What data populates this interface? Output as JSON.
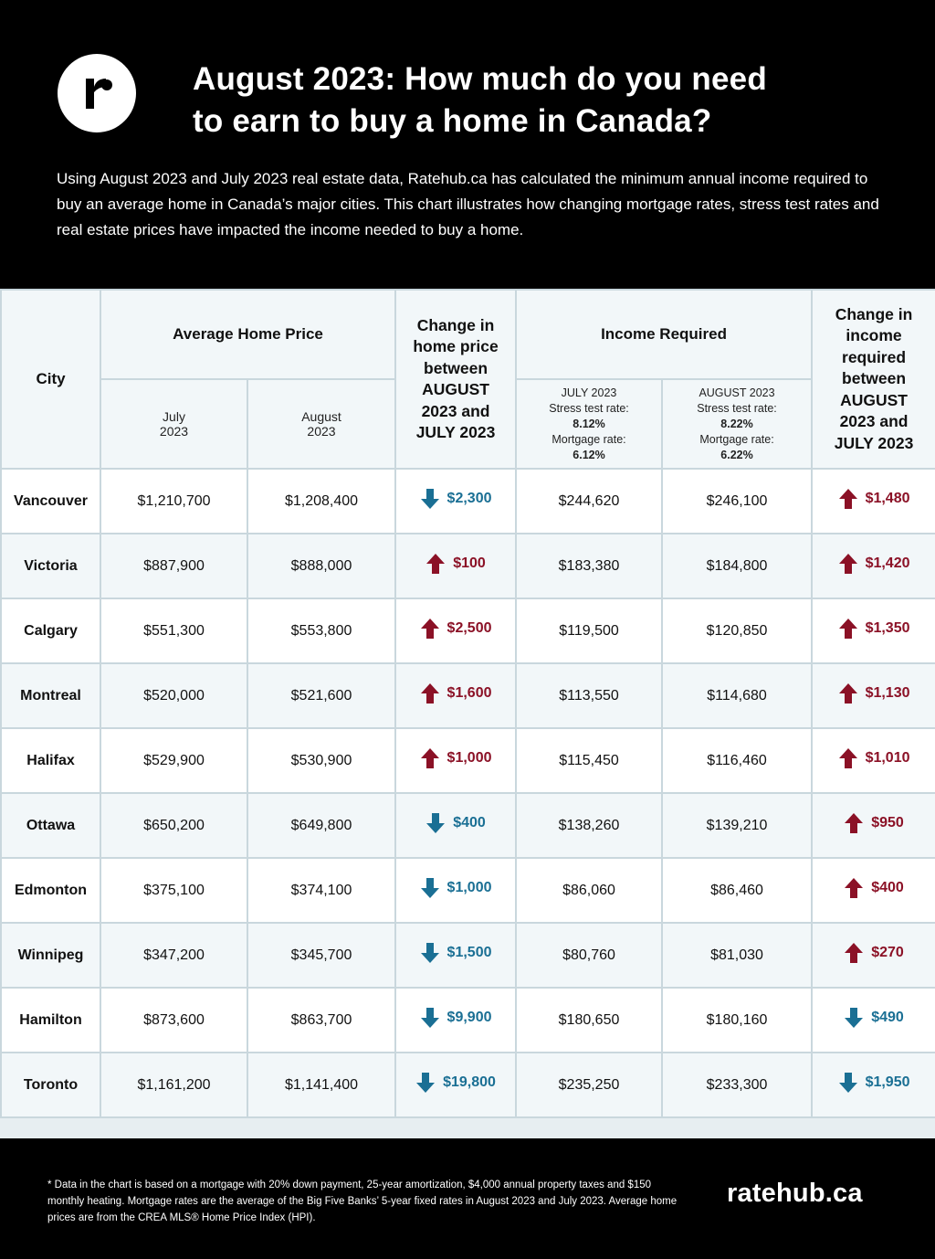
{
  "header": {
    "logo_letter": "r",
    "title_line1": "August 2023: How much do you need",
    "title_line2": "to earn to buy a home in Canada?",
    "intro": "Using August 2023 and July 2023 real estate data, Ratehub.ca has calculated the minimum annual income required to buy an average home in Canada’s major cities. This chart illustrates how changing mortgage rates, stress test rates and real estate prices have impacted the income needed to buy a home."
  },
  "table_headers": {
    "city": "City",
    "avg_price": "Average Home Price",
    "july_line1": "July",
    "july_line2": "2023",
    "aug_line1": "August",
    "aug_line2": "2023",
    "change_price_lines": [
      "Change in",
      "home price",
      "between",
      "AUGUST",
      "2023 and",
      "JULY 2023"
    ],
    "income_required": "Income Required",
    "ir_july": {
      "period": "JULY 2023",
      "stress_label": "Stress test rate:",
      "stress_value": "8.12%",
      "mortgage_label": "Mortgage rate:",
      "mortgage_value": "6.12%"
    },
    "ir_aug": {
      "period": "AUGUST 2023",
      "stress_label": "Stress test rate:",
      "stress_value": "8.22%",
      "mortgage_label": "Mortgage rate:",
      "mortgage_value": "6.22%"
    },
    "change_income_lines": [
      "Change in",
      "income",
      "required",
      "between",
      "AUGUST",
      "2023 and",
      "JULY 2023"
    ]
  },
  "colors": {
    "increase": "#8b1126",
    "decrease": "#1a6f94",
    "header_bg": "#000000",
    "grid": "#c9d7dd"
  },
  "chart_data": {
    "type": "table",
    "columns": [
      "City",
      "Average Home Price July 2023",
      "Average Home Price August 2023",
      "Change in home price between AUGUST 2023 and JULY 2023",
      "Income Required JULY 2023",
      "Income Required AUGUST 2023",
      "Change in income required between AUGUST 2023 and JULY 2023"
    ],
    "rows": [
      {
        "city": "Vancouver",
        "price_jul": "$1,210,700",
        "price_aug": "$1,208,400",
        "price_change": "$2,300",
        "price_dir": "down",
        "income_jul": "$244,620",
        "income_aug": "$246,100",
        "income_change": "$1,480",
        "income_dir": "up"
      },
      {
        "city": "Victoria",
        "price_jul": "$887,900",
        "price_aug": "$888,000",
        "price_change": "$100",
        "price_dir": "up",
        "income_jul": "$183,380",
        "income_aug": "$184,800",
        "income_change": "$1,420",
        "income_dir": "up"
      },
      {
        "city": "Calgary",
        "price_jul": "$551,300",
        "price_aug": "$553,800",
        "price_change": "$2,500",
        "price_dir": "up",
        "income_jul": "$119,500",
        "income_aug": "$120,850",
        "income_change": "$1,350",
        "income_dir": "up"
      },
      {
        "city": "Montreal",
        "price_jul": "$520,000",
        "price_aug": "$521,600",
        "price_change": "$1,600",
        "price_dir": "up",
        "income_jul": "$113,550",
        "income_aug": "$114,680",
        "income_change": "$1,130",
        "income_dir": "up"
      },
      {
        "city": "Halifax",
        "price_jul": "$529,900",
        "price_aug": "$530,900",
        "price_change": "$1,000",
        "price_dir": "up",
        "income_jul": "$115,450",
        "income_aug": "$116,460",
        "income_change": "$1,010",
        "income_dir": "up"
      },
      {
        "city": "Ottawa",
        "price_jul": "$650,200",
        "price_aug": "$649,800",
        "price_change": "$400",
        "price_dir": "down",
        "income_jul": "$138,260",
        "income_aug": "$139,210",
        "income_change": "$950",
        "income_dir": "up"
      },
      {
        "city": "Edmonton",
        "price_jul": "$375,100",
        "price_aug": "$374,100",
        "price_change": "$1,000",
        "price_dir": "down",
        "income_jul": "$86,060",
        "income_aug": "$86,460",
        "income_change": "$400",
        "income_dir": "up"
      },
      {
        "city": "Winnipeg",
        "price_jul": "$347,200",
        "price_aug": "$345,700",
        "price_change": "$1,500",
        "price_dir": "down",
        "income_jul": "$80,760",
        "income_aug": "$81,030",
        "income_change": "$270",
        "income_dir": "up"
      },
      {
        "city": "Hamilton",
        "price_jul": "$873,600",
        "price_aug": "$863,700",
        "price_change": "$9,900",
        "price_dir": "down",
        "income_jul": "$180,650",
        "income_aug": "$180,160",
        "income_change": "$490",
        "income_dir": "down"
      },
      {
        "city": "Toronto",
        "price_jul": "$1,161,200",
        "price_aug": "$1,141,400",
        "price_change": "$19,800",
        "price_dir": "down",
        "income_jul": "$235,250",
        "income_aug": "$233,300",
        "income_change": "$1,950",
        "income_dir": "down"
      }
    ]
  },
  "footer": {
    "footnote": "* Data in the chart is based on a mortgage with 20% down payment, 25-year amortization, $4,000 annual property taxes and $150 monthly heating. Mortgage rates are the average of the Big Five Banks’ 5-year fixed rates in August 2023 and July 2023. Average home prices are from the CREA MLS® Home Price Index (HPI).",
    "brand": "ratehub.ca"
  }
}
